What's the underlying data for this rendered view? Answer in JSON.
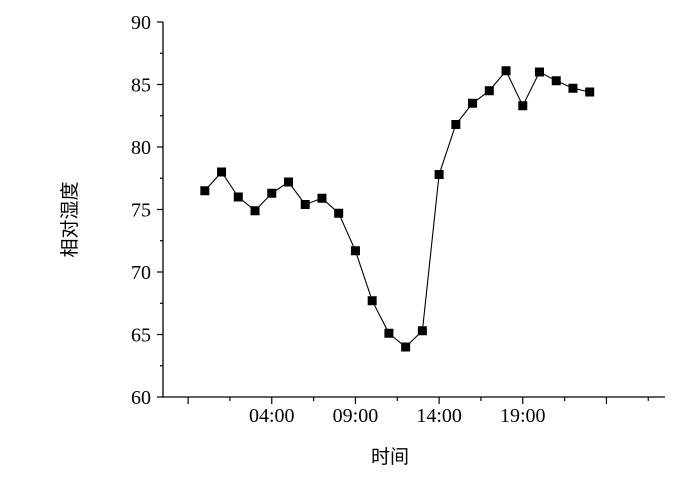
{
  "chart_data": {
    "type": "line",
    "xlabel": "时间",
    "ylabel": "相对湿度",
    "x_ticks": [
      "04:00",
      "09:00",
      "14:00",
      "19:00"
    ],
    "x_tick_hours": [
      4,
      9,
      14,
      19
    ],
    "xlim": [
      -2.5,
      27.5
    ],
    "ylim": [
      60,
      90
    ],
    "y_ticks": [
      60,
      65,
      70,
      75,
      80,
      85,
      90
    ],
    "grid": false,
    "legend": "none",
    "marker": "square",
    "color": "#000000",
    "series": [
      {
        "x": [
          0,
          1,
          2,
          3,
          4,
          5,
          6,
          7,
          8,
          9,
          10,
          11,
          12,
          13,
          14,
          15,
          16,
          17,
          18,
          19,
          20,
          21,
          22,
          23
        ],
        "y": [
          76.5,
          78.0,
          76.0,
          74.9,
          76.3,
          77.2,
          75.4,
          75.9,
          74.7,
          71.7,
          67.7,
          65.1,
          64.0,
          65.3,
          77.8,
          81.8,
          83.5,
          84.5,
          86.1,
          83.3,
          86.0,
          85.3,
          84.7,
          84.4
        ]
      }
    ]
  }
}
